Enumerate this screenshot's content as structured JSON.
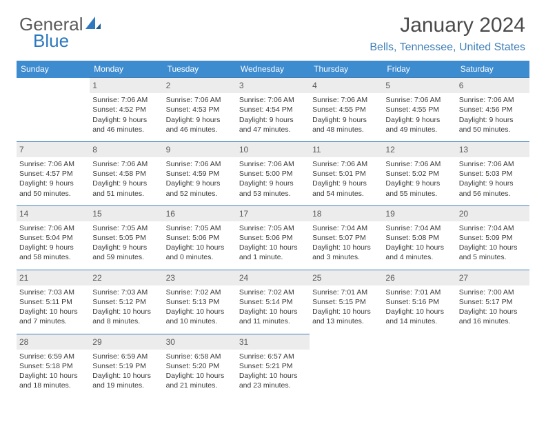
{
  "brand": {
    "word1": "General",
    "word2": "Blue"
  },
  "title": "January 2024",
  "location": "Bells, Tennessee, United States",
  "colors": {
    "header_bg": "#3e8cd0",
    "header_text": "#ffffff",
    "accent": "#3f7fb8",
    "daynum_bg": "#ececec",
    "body_bg": "#ffffff",
    "text": "#3a3a3a"
  },
  "typography": {
    "title_fontsize": 30,
    "location_fontsize": 16,
    "header_fontsize": 12,
    "cell_fontsize": 10.5
  },
  "layout": {
    "columns": 7,
    "rows": 5
  },
  "day_headers": [
    "Sunday",
    "Monday",
    "Tuesday",
    "Wednesday",
    "Thursday",
    "Friday",
    "Saturday"
  ],
  "weeks": [
    [
      null,
      {
        "n": "1",
        "sr": "Sunrise: 7:06 AM",
        "ss": "Sunset: 4:52 PM",
        "dl1": "Daylight: 9 hours",
        "dl2": "and 46 minutes."
      },
      {
        "n": "2",
        "sr": "Sunrise: 7:06 AM",
        "ss": "Sunset: 4:53 PM",
        "dl1": "Daylight: 9 hours",
        "dl2": "and 46 minutes."
      },
      {
        "n": "3",
        "sr": "Sunrise: 7:06 AM",
        "ss": "Sunset: 4:54 PM",
        "dl1": "Daylight: 9 hours",
        "dl2": "and 47 minutes."
      },
      {
        "n": "4",
        "sr": "Sunrise: 7:06 AM",
        "ss": "Sunset: 4:55 PM",
        "dl1": "Daylight: 9 hours",
        "dl2": "and 48 minutes."
      },
      {
        "n": "5",
        "sr": "Sunrise: 7:06 AM",
        "ss": "Sunset: 4:55 PM",
        "dl1": "Daylight: 9 hours",
        "dl2": "and 49 minutes."
      },
      {
        "n": "6",
        "sr": "Sunrise: 7:06 AM",
        "ss": "Sunset: 4:56 PM",
        "dl1": "Daylight: 9 hours",
        "dl2": "and 50 minutes."
      }
    ],
    [
      {
        "n": "7",
        "sr": "Sunrise: 7:06 AM",
        "ss": "Sunset: 4:57 PM",
        "dl1": "Daylight: 9 hours",
        "dl2": "and 50 minutes."
      },
      {
        "n": "8",
        "sr": "Sunrise: 7:06 AM",
        "ss": "Sunset: 4:58 PM",
        "dl1": "Daylight: 9 hours",
        "dl2": "and 51 minutes."
      },
      {
        "n": "9",
        "sr": "Sunrise: 7:06 AM",
        "ss": "Sunset: 4:59 PM",
        "dl1": "Daylight: 9 hours",
        "dl2": "and 52 minutes."
      },
      {
        "n": "10",
        "sr": "Sunrise: 7:06 AM",
        "ss": "Sunset: 5:00 PM",
        "dl1": "Daylight: 9 hours",
        "dl2": "and 53 minutes."
      },
      {
        "n": "11",
        "sr": "Sunrise: 7:06 AM",
        "ss": "Sunset: 5:01 PM",
        "dl1": "Daylight: 9 hours",
        "dl2": "and 54 minutes."
      },
      {
        "n": "12",
        "sr": "Sunrise: 7:06 AM",
        "ss": "Sunset: 5:02 PM",
        "dl1": "Daylight: 9 hours",
        "dl2": "and 55 minutes."
      },
      {
        "n": "13",
        "sr": "Sunrise: 7:06 AM",
        "ss": "Sunset: 5:03 PM",
        "dl1": "Daylight: 9 hours",
        "dl2": "and 56 minutes."
      }
    ],
    [
      {
        "n": "14",
        "sr": "Sunrise: 7:06 AM",
        "ss": "Sunset: 5:04 PM",
        "dl1": "Daylight: 9 hours",
        "dl2": "and 58 minutes."
      },
      {
        "n": "15",
        "sr": "Sunrise: 7:05 AM",
        "ss": "Sunset: 5:05 PM",
        "dl1": "Daylight: 9 hours",
        "dl2": "and 59 minutes."
      },
      {
        "n": "16",
        "sr": "Sunrise: 7:05 AM",
        "ss": "Sunset: 5:06 PM",
        "dl1": "Daylight: 10 hours",
        "dl2": "and 0 minutes."
      },
      {
        "n": "17",
        "sr": "Sunrise: 7:05 AM",
        "ss": "Sunset: 5:06 PM",
        "dl1": "Daylight: 10 hours",
        "dl2": "and 1 minute."
      },
      {
        "n": "18",
        "sr": "Sunrise: 7:04 AM",
        "ss": "Sunset: 5:07 PM",
        "dl1": "Daylight: 10 hours",
        "dl2": "and 3 minutes."
      },
      {
        "n": "19",
        "sr": "Sunrise: 7:04 AM",
        "ss": "Sunset: 5:08 PM",
        "dl1": "Daylight: 10 hours",
        "dl2": "and 4 minutes."
      },
      {
        "n": "20",
        "sr": "Sunrise: 7:04 AM",
        "ss": "Sunset: 5:09 PM",
        "dl1": "Daylight: 10 hours",
        "dl2": "and 5 minutes."
      }
    ],
    [
      {
        "n": "21",
        "sr": "Sunrise: 7:03 AM",
        "ss": "Sunset: 5:11 PM",
        "dl1": "Daylight: 10 hours",
        "dl2": "and 7 minutes."
      },
      {
        "n": "22",
        "sr": "Sunrise: 7:03 AM",
        "ss": "Sunset: 5:12 PM",
        "dl1": "Daylight: 10 hours",
        "dl2": "and 8 minutes."
      },
      {
        "n": "23",
        "sr": "Sunrise: 7:02 AM",
        "ss": "Sunset: 5:13 PM",
        "dl1": "Daylight: 10 hours",
        "dl2": "and 10 minutes."
      },
      {
        "n": "24",
        "sr": "Sunrise: 7:02 AM",
        "ss": "Sunset: 5:14 PM",
        "dl1": "Daylight: 10 hours",
        "dl2": "and 11 minutes."
      },
      {
        "n": "25",
        "sr": "Sunrise: 7:01 AM",
        "ss": "Sunset: 5:15 PM",
        "dl1": "Daylight: 10 hours",
        "dl2": "and 13 minutes."
      },
      {
        "n": "26",
        "sr": "Sunrise: 7:01 AM",
        "ss": "Sunset: 5:16 PM",
        "dl1": "Daylight: 10 hours",
        "dl2": "and 14 minutes."
      },
      {
        "n": "27",
        "sr": "Sunrise: 7:00 AM",
        "ss": "Sunset: 5:17 PM",
        "dl1": "Daylight: 10 hours",
        "dl2": "and 16 minutes."
      }
    ],
    [
      {
        "n": "28",
        "sr": "Sunrise: 6:59 AM",
        "ss": "Sunset: 5:18 PM",
        "dl1": "Daylight: 10 hours",
        "dl2": "and 18 minutes."
      },
      {
        "n": "29",
        "sr": "Sunrise: 6:59 AM",
        "ss": "Sunset: 5:19 PM",
        "dl1": "Daylight: 10 hours",
        "dl2": "and 19 minutes."
      },
      {
        "n": "30",
        "sr": "Sunrise: 6:58 AM",
        "ss": "Sunset: 5:20 PM",
        "dl1": "Daylight: 10 hours",
        "dl2": "and 21 minutes."
      },
      {
        "n": "31",
        "sr": "Sunrise: 6:57 AM",
        "ss": "Sunset: 5:21 PM",
        "dl1": "Daylight: 10 hours",
        "dl2": "and 23 minutes."
      },
      null,
      null,
      null
    ]
  ]
}
